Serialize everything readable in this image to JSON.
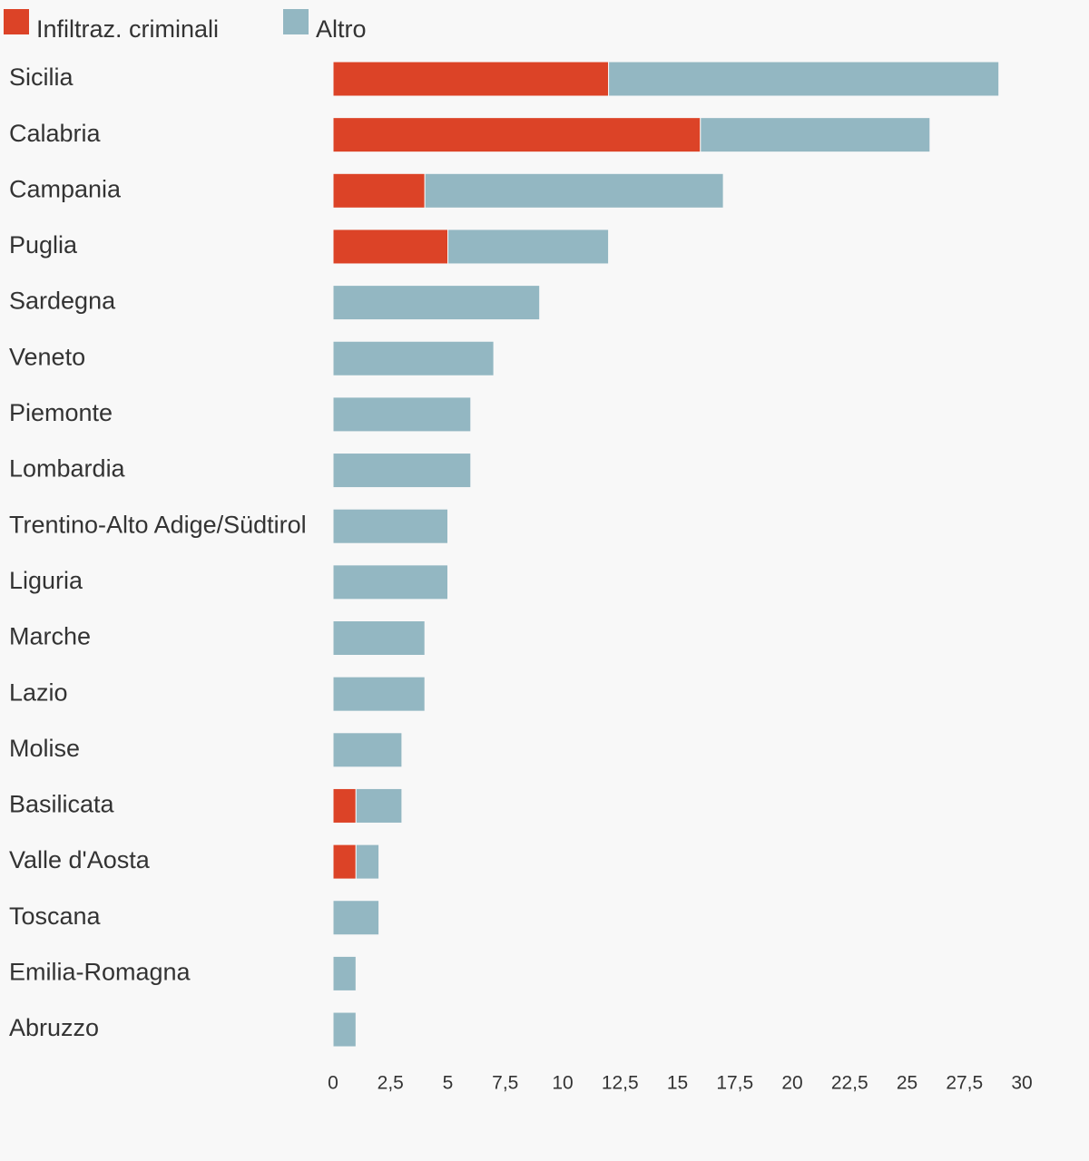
{
  "chart_data": {
    "type": "bar",
    "orientation": "horizontal",
    "stacked": true,
    "legend_position": "top-left",
    "grid": false,
    "categories": [
      "Sicilia",
      "Calabria",
      "Campania",
      "Puglia",
      "Sardegna",
      "Veneto",
      "Piemonte",
      "Lombardia",
      "Trentino-Alto Adige/Südtirol",
      "Liguria",
      "Marche",
      "Lazio",
      "Molise",
      "Basilicata",
      "Valle d'Aosta",
      "Toscana",
      "Emilia-Romagna",
      "Abruzzo"
    ],
    "series": [
      {
        "name": "Infiltraz. criminali",
        "color": "#dc4327",
        "values": [
          12,
          16,
          4,
          5,
          0,
          0,
          0,
          0,
          0,
          0,
          0,
          0,
          0,
          1,
          1,
          0,
          0,
          0
        ]
      },
      {
        "name": "Altro",
        "color": "#93b7c2",
        "values": [
          17,
          10,
          13,
          7,
          9,
          7,
          6,
          6,
          5,
          5,
          4,
          4,
          3,
          2,
          1,
          2,
          1,
          1
        ]
      }
    ],
    "x_range": [
      0,
      30
    ],
    "x_ticks": [
      {
        "value": 0,
        "label": "0"
      },
      {
        "value": 2.5,
        "label": "2,5"
      },
      {
        "value": 5,
        "label": "5"
      },
      {
        "value": 7.5,
        "label": "7,5"
      },
      {
        "value": 10,
        "label": "10"
      },
      {
        "value": 12.5,
        "label": "12,5"
      },
      {
        "value": 15,
        "label": "15"
      },
      {
        "value": 17.5,
        "label": "17,5"
      },
      {
        "value": 20,
        "label": "20"
      },
      {
        "value": 22.5,
        "label": "22,5"
      },
      {
        "value": 25,
        "label": "25"
      },
      {
        "value": 27.5,
        "label": "27,5"
      },
      {
        "value": 30,
        "label": "30"
      }
    ]
  }
}
